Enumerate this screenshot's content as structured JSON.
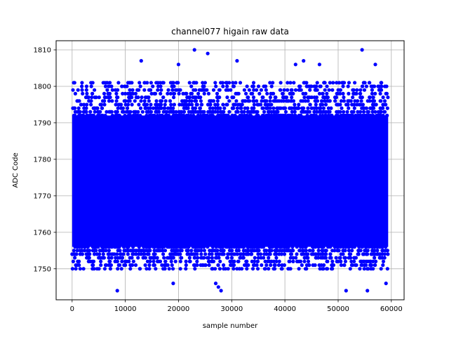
{
  "chart_data": {
    "type": "scatter",
    "title": "channel077 higain raw data",
    "xlabel": "sample number",
    "ylabel": "ADC Code",
    "xlim": [
      -3000,
      62400
    ],
    "ylim": [
      1741.5,
      1812.5
    ],
    "xticks": [
      0,
      10000,
      20000,
      30000,
      40000,
      50000,
      60000
    ],
    "yticks": [
      1750,
      1760,
      1770,
      1780,
      1790,
      1800,
      1810
    ],
    "grid": true,
    "marker_color": "#0000ff",
    "n_samples": 60000,
    "dense_band": [
      1750,
      1800
    ],
    "notable_points": [
      {
        "x": 8500,
        "y": 1744
      },
      {
        "x": 13000,
        "y": 1807
      },
      {
        "x": 19000,
        "y": 1746
      },
      {
        "x": 20000,
        "y": 1806
      },
      {
        "x": 23000,
        "y": 1810
      },
      {
        "x": 25500,
        "y": 1809
      },
      {
        "x": 27000,
        "y": 1746
      },
      {
        "x": 27500,
        "y": 1745
      },
      {
        "x": 28000,
        "y": 1744
      },
      {
        "x": 31000,
        "y": 1807
      },
      {
        "x": 42000,
        "y": 1806
      },
      {
        "x": 43500,
        "y": 1807
      },
      {
        "x": 46500,
        "y": 1806
      },
      {
        "x": 51500,
        "y": 1744
      },
      {
        "x": 54500,
        "y": 1810
      },
      {
        "x": 55500,
        "y": 1744
      },
      {
        "x": 57000,
        "y": 1806
      },
      {
        "x": 59000,
        "y": 1746
      }
    ]
  }
}
